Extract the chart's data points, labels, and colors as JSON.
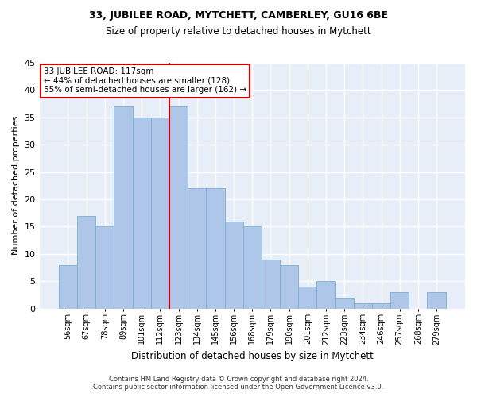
{
  "title": "33, JUBILEE ROAD, MYTCHETT, CAMBERLEY, GU16 6BE",
  "subtitle": "Size of property relative to detached houses in Mytchett",
  "xlabel": "Distribution of detached houses by size in Mytchett",
  "ylabel": "Number of detached properties",
  "categories": [
    "56sqm",
    "67sqm",
    "78sqm",
    "89sqm",
    "101sqm",
    "112sqm",
    "123sqm",
    "134sqm",
    "145sqm",
    "156sqm",
    "168sqm",
    "179sqm",
    "190sqm",
    "201sqm",
    "212sqm",
    "223sqm",
    "234sqm",
    "246sqm",
    "257sqm",
    "268sqm",
    "279sqm"
  ],
  "values": [
    8,
    17,
    15,
    37,
    35,
    35,
    37,
    22,
    22,
    16,
    15,
    9,
    8,
    4,
    5,
    2,
    1,
    1,
    3,
    0,
    3
  ],
  "bar_color": "#aec6e8",
  "bar_edge_color": "#7bafd4",
  "vline_color": "#cc0000",
  "annotation_text": "33 JUBILEE ROAD: 117sqm\n← 44% of detached houses are smaller (128)\n55% of semi-detached houses are larger (162) →",
  "annotation_box_color": "#ffffff",
  "annotation_box_edge": "#cc0000",
  "ylim": [
    0,
    45
  ],
  "yticks": [
    0,
    5,
    10,
    15,
    20,
    25,
    30,
    35,
    40,
    45
  ],
  "background_color": "#e8eef8",
  "fig_background_color": "#ffffff",
  "grid_color": "#ffffff",
  "footer_line1": "Contains HM Land Registry data © Crown copyright and database right 2024.",
  "footer_line2": "Contains public sector information licensed under the Open Government Licence v3.0."
}
